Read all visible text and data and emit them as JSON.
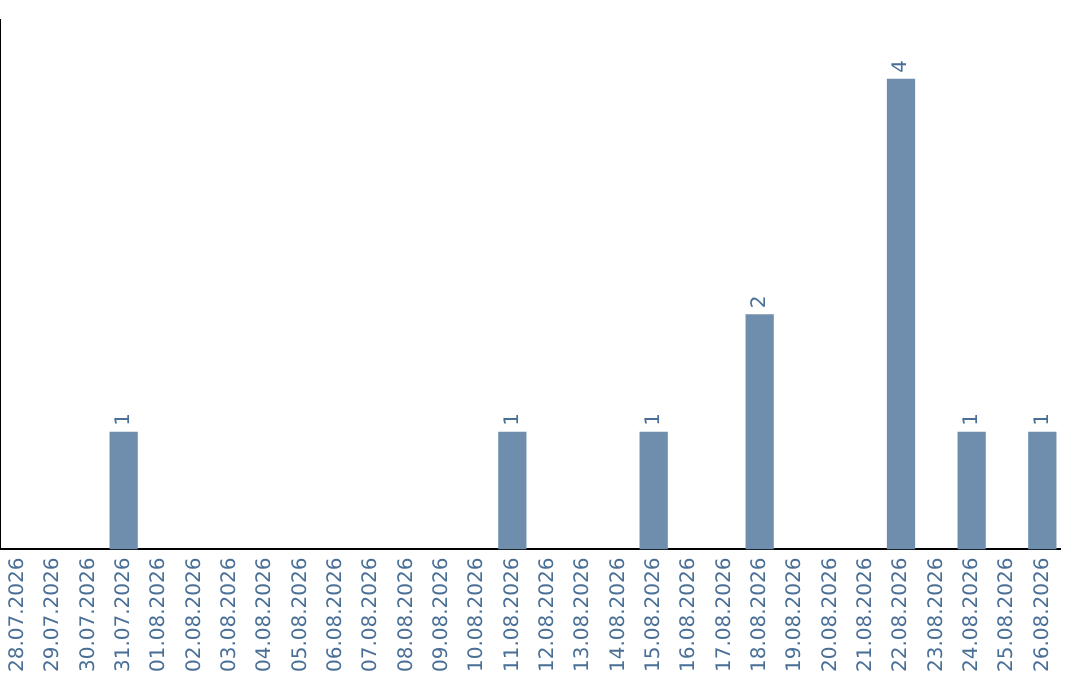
{
  "chart_data": {
    "type": "bar",
    "categories": [
      "28.07.2026",
      "29.07.2026",
      "30.07.2026",
      "31.07.2026",
      "01.08.2026",
      "02.08.2026",
      "03.08.2026",
      "04.08.2026",
      "05.08.2026",
      "06.08.2026",
      "07.08.2026",
      "08.08.2026",
      "09.08.2026",
      "10.08.2026",
      "11.08.2026",
      "12.08.2026",
      "13.08.2026",
      "14.08.2026",
      "15.08.2026",
      "16.08.2026",
      "17.08.2026",
      "18.08.2026",
      "19.08.2026",
      "20.08.2026",
      "21.08.2026",
      "22.08.2026",
      "23.08.2026",
      "24.08.2026",
      "25.08.2026",
      "26.08.2026"
    ],
    "values": [
      0,
      0,
      0,
      1,
      0,
      0,
      0,
      0,
      0,
      0,
      0,
      0,
      0,
      0,
      1,
      0,
      0,
      0,
      1,
      0,
      0,
      2,
      0,
      0,
      0,
      4,
      0,
      1,
      0,
      1
    ],
    "value_labels": [
      null,
      null,
      null,
      "1",
      null,
      null,
      null,
      null,
      null,
      null,
      null,
      null,
      null,
      null,
      "1",
      null,
      null,
      null,
      "1",
      null,
      null,
      "2",
      null,
      null,
      null,
      "4",
      null,
      "1",
      null,
      "1"
    ],
    "color": "#6f8ead",
    "grid": false,
    "legend": false,
    "tick_labels": "x"
  }
}
